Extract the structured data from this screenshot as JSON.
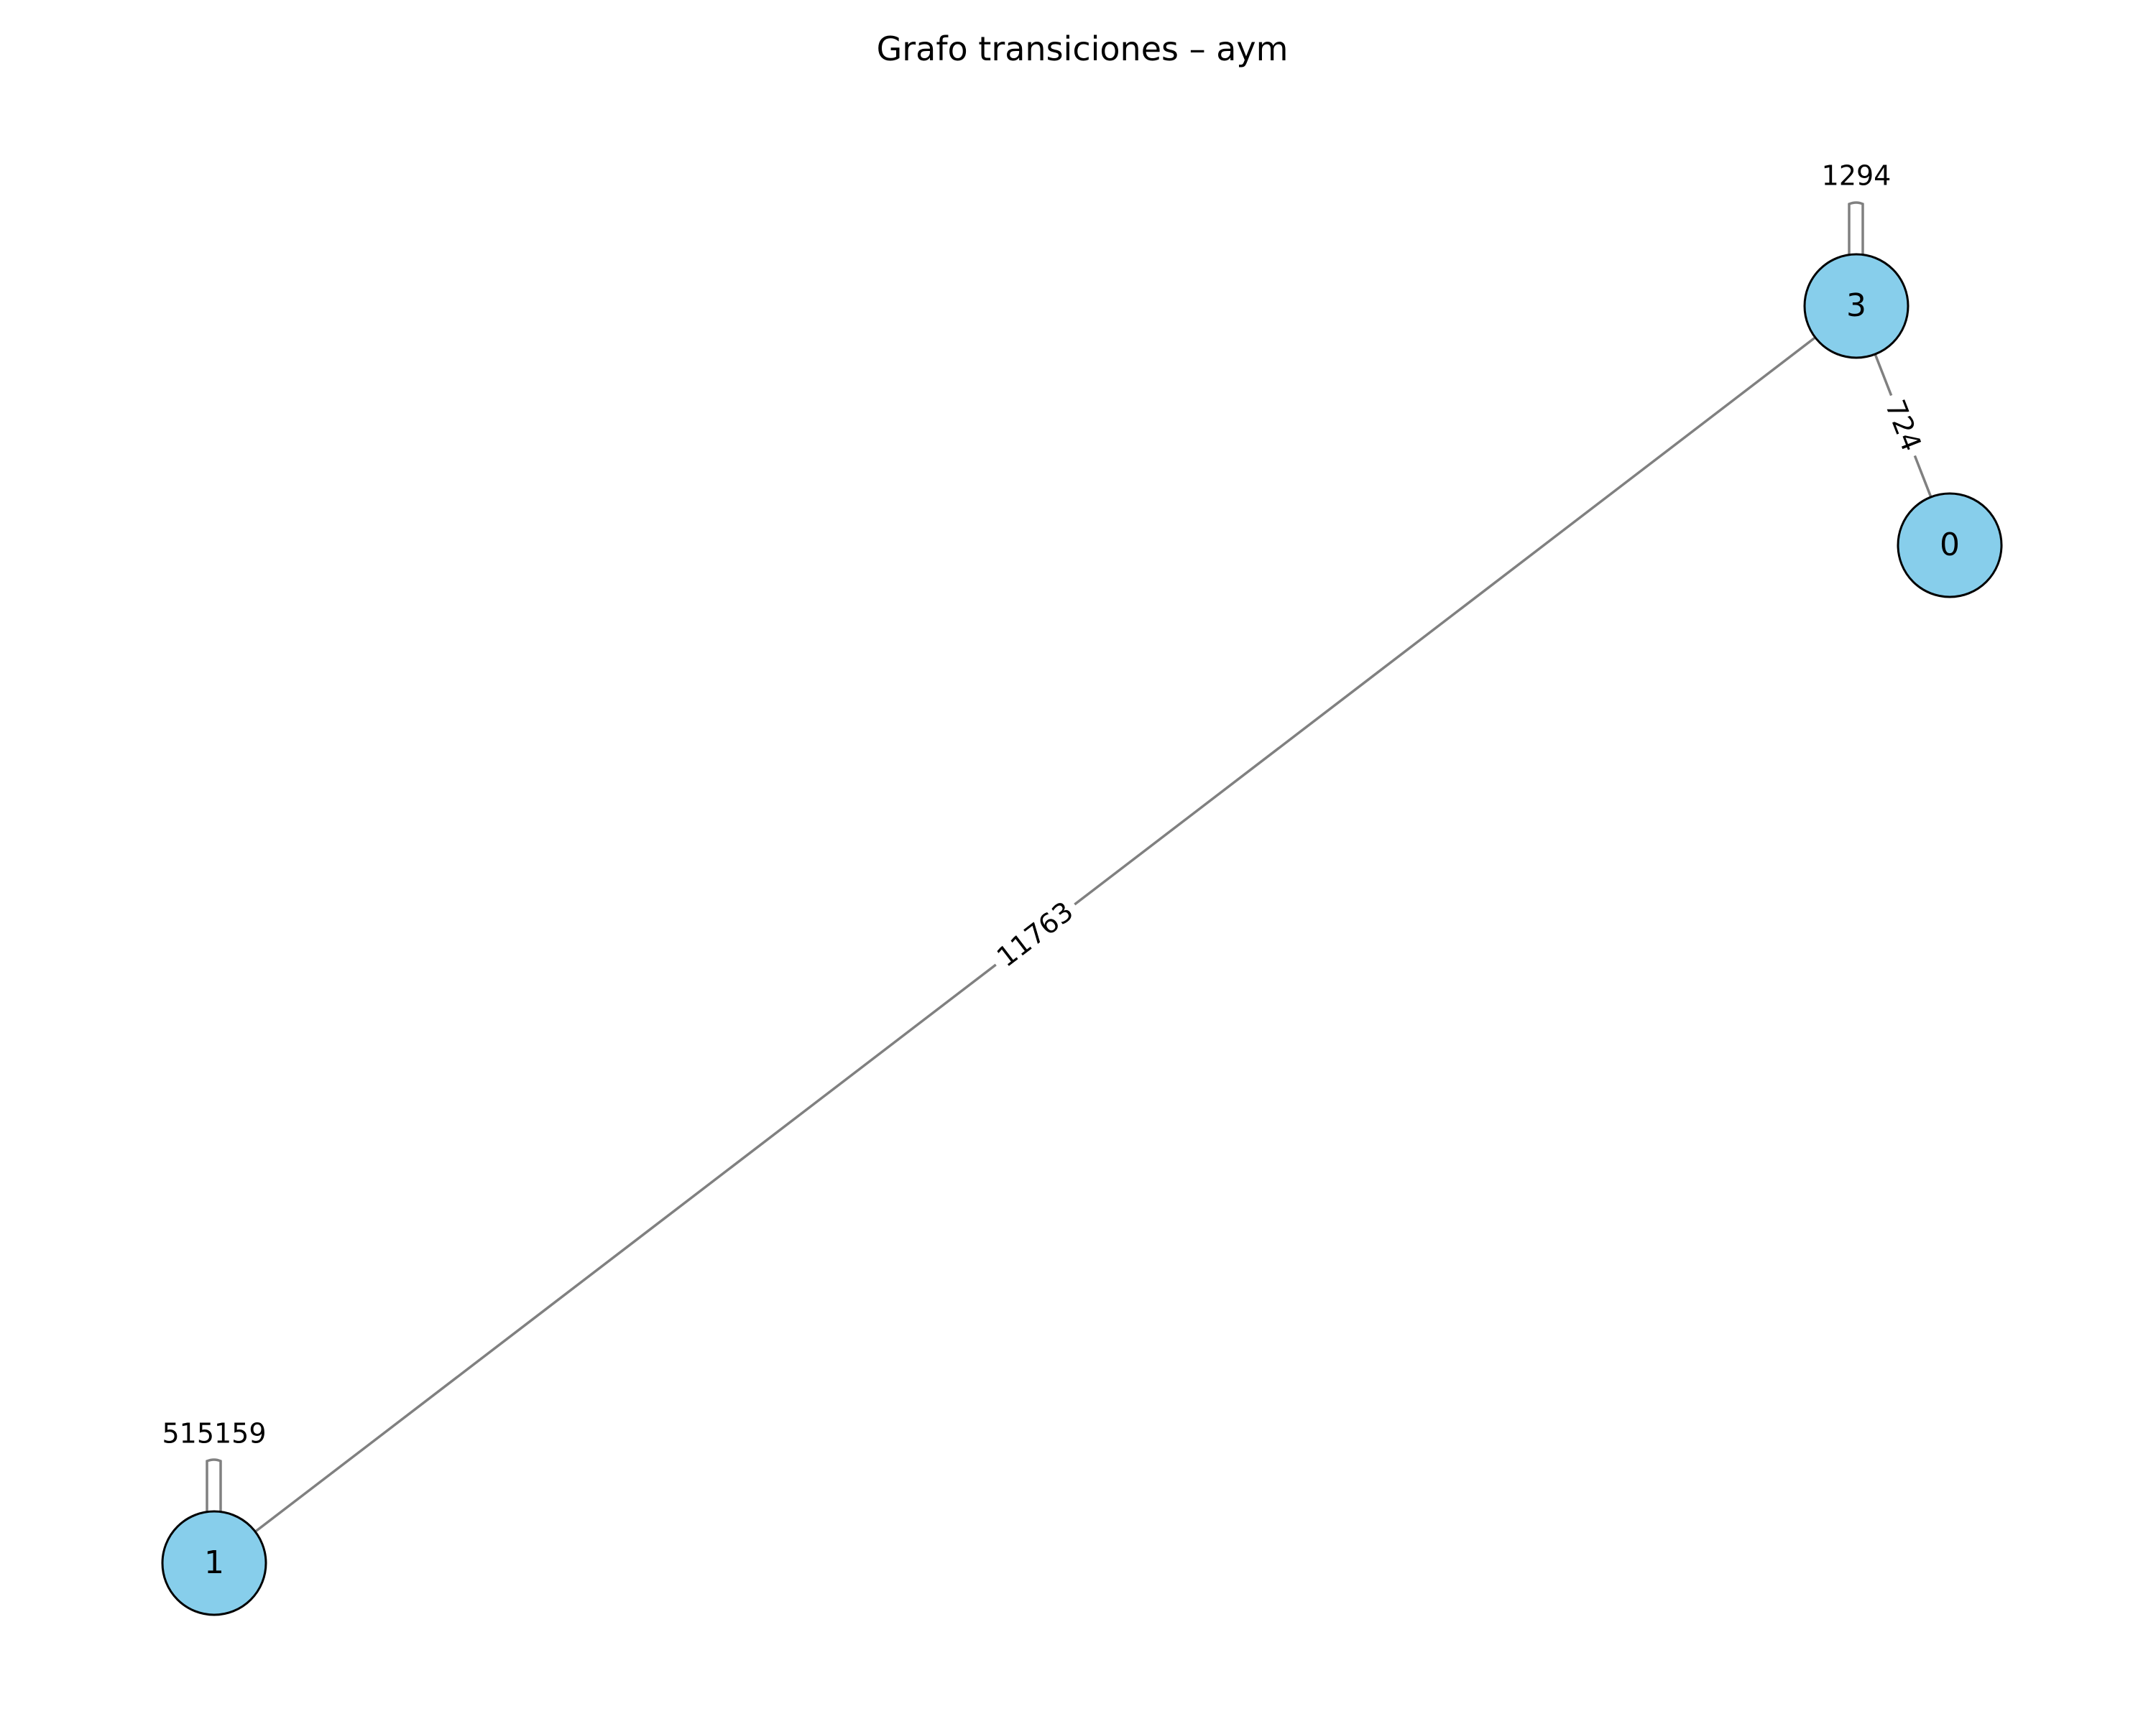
{
  "title": "Grafo transiciones – aym",
  "colors": {
    "node_fill": "#87ceeb",
    "node_stroke": "#000000",
    "edge": "#808080",
    "background": "#ffffff"
  },
  "nodes": [
    {
      "id": "3",
      "label": "3"
    },
    {
      "id": "0",
      "label": "0"
    },
    {
      "id": "1",
      "label": "1"
    }
  ],
  "edges": [
    {
      "source": "3",
      "target": "1",
      "label": "11763"
    },
    {
      "source": "3",
      "target": "0",
      "label": "724"
    },
    {
      "source": "3",
      "target": "3",
      "label": "1294"
    },
    {
      "source": "1",
      "target": "1",
      "label": "515159"
    }
  ]
}
